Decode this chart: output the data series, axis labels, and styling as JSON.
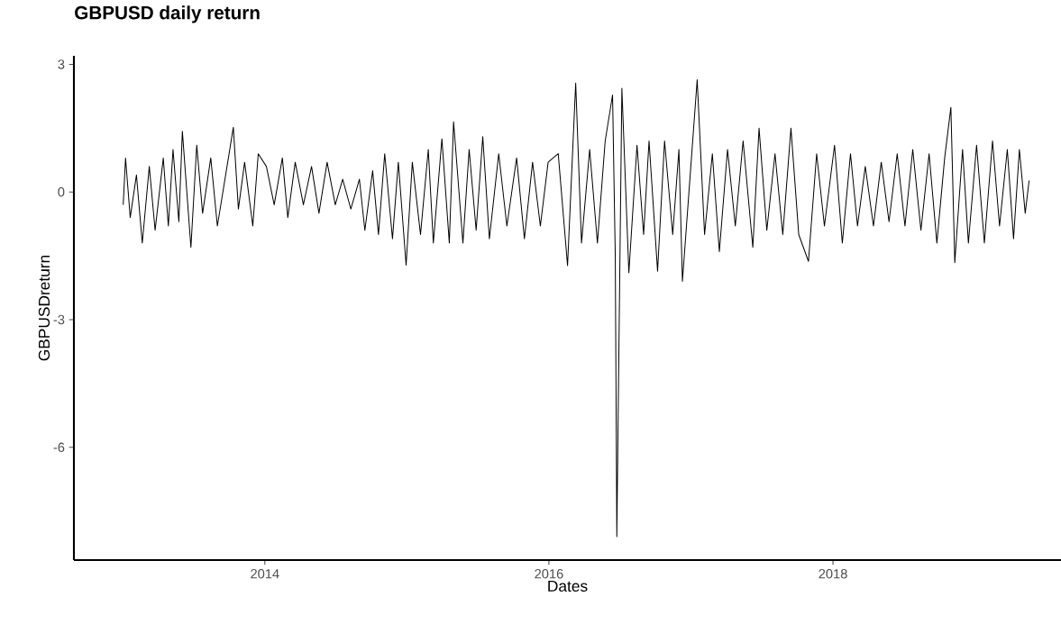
{
  "chart_data": {
    "type": "line",
    "title": "GBPUSD daily return",
    "xlabel": "Dates",
    "ylabel": "GBPUSDreturn",
    "color": "#000000",
    "xlim": [
      "2012-08-28",
      "2019-08-10"
    ],
    "ylim": [
      -8.65,
      3.2
    ],
    "xticks": [
      "2014",
      "2016",
      "2018"
    ],
    "yticks": [
      -6,
      -3,
      0,
      3
    ],
    "x": [
      "2013-01-02",
      "2013-01-08",
      "2013-01-20",
      "2013-02-05",
      "2013-02-20",
      "2013-03-10",
      "2013-03-25",
      "2013-04-15",
      "2013-04-28",
      "2013-05-10",
      "2013-05-25",
      "2013-06-03",
      "2013-06-25",
      "2013-07-10",
      "2013-07-25",
      "2013-08-15",
      "2013-09-01",
      "2013-10-12",
      "2013-10-25",
      "2013-11-10",
      "2013-12-01",
      "2013-12-15",
      "2014-01-05",
      "2014-01-25",
      "2014-02-15",
      "2014-03-01",
      "2014-03-20",
      "2014-04-10",
      "2014-05-01",
      "2014-05-20",
      "2014-06-10",
      "2014-07-01",
      "2014-07-20",
      "2014-08-10",
      "2014-09-01",
      "2014-09-15",
      "2014-10-05",
      "2014-10-20",
      "2014-11-05",
      "2014-11-25",
      "2014-12-10",
      "2014-12-30",
      "2015-01-15",
      "2015-02-05",
      "2015-02-25",
      "2015-03-10",
      "2015-04-01",
      "2015-04-20",
      "2015-05-01",
      "2015-05-25",
      "2015-06-10",
      "2015-06-28",
      "2015-07-15",
      "2015-08-01",
      "2015-08-25",
      "2015-09-15",
      "2015-10-10",
      "2015-10-30",
      "2015-11-20",
      "2015-12-10",
      "2015-12-30",
      "2016-01-25",
      "2016-02-18",
      "2016-03-10",
      "2016-03-25",
      "2016-04-15",
      "2016-05-05",
      "2016-05-25",
      "2016-06-13",
      "2016-06-20",
      "2016-06-24",
      "2016-06-27",
      "2016-07-07",
      "2016-07-25",
      "2016-08-15",
      "2016-09-01",
      "2016-09-15",
      "2016-10-07",
      "2016-10-25",
      "2016-11-15",
      "2016-12-01",
      "2016-12-10",
      "2017-01-17",
      "2017-02-05",
      "2017-02-25",
      "2017-03-15",
      "2017-04-05",
      "2017-04-25",
      "2017-05-15",
      "2017-06-09",
      "2017-06-25",
      "2017-07-15",
      "2017-08-05",
      "2017-08-25",
      "2017-09-15",
      "2017-10-05",
      "2017-10-30",
      "2017-11-20",
      "2017-12-10",
      "2018-01-05",
      "2018-01-25",
      "2018-02-15",
      "2018-03-05",
      "2018-03-25",
      "2018-04-15",
      "2018-05-05",
      "2018-05-25",
      "2018-06-15",
      "2018-07-05",
      "2018-07-25",
      "2018-08-15",
      "2018-09-05",
      "2018-09-25",
      "2018-10-15",
      "2018-10-31",
      "2018-11-10",
      "2018-11-30",
      "2018-12-15",
      "2019-01-05",
      "2019-01-25",
      "2019-02-15",
      "2019-03-05",
      "2019-03-25",
      "2019-04-10",
      "2019-04-25",
      "2019-05-10",
      "2019-05-20"
    ],
    "values": [
      -0.3,
      0.8,
      -0.6,
      0.4,
      -1.2,
      0.6,
      -0.9,
      0.8,
      -0.8,
      1.0,
      -0.7,
      1.43,
      -1.3,
      1.1,
      -0.5,
      0.8,
      -0.8,
      1.52,
      -0.4,
      0.7,
      -0.8,
      0.9,
      0.6,
      -0.3,
      0.8,
      -0.6,
      0.7,
      -0.3,
      0.6,
      -0.5,
      0.7,
      -0.3,
      0.3,
      -0.4,
      0.3,
      -0.9,
      0.5,
      -1.0,
      0.9,
      -1.1,
      0.7,
      -1.72,
      0.7,
      -1.0,
      1.0,
      -1.2,
      1.25,
      -1.2,
      1.65,
      -1.2,
      1.0,
      -0.9,
      1.3,
      -1.1,
      0.9,
      -0.8,
      0.8,
      -1.1,
      0.7,
      -0.8,
      0.7,
      0.9,
      -1.73,
      2.56,
      -1.2,
      1.0,
      -1.2,
      1.2,
      2.28,
      -1.5,
      -8.1,
      -5.6,
      2.44,
      -1.9,
      1.1,
      -1.0,
      1.2,
      -1.86,
      1.2,
      -1.0,
      1.0,
      -2.1,
      2.64,
      -1.0,
      0.9,
      -1.4,
      1.0,
      -0.8,
      1.2,
      -1.3,
      1.5,
      -0.9,
      0.9,
      -1.0,
      1.5,
      -1.0,
      -1.63,
      0.9,
      -0.8,
      1.1,
      -1.2,
      0.9,
      -0.8,
      0.6,
      -0.8,
      0.7,
      -0.7,
      0.9,
      -0.8,
      1.0,
      -0.9,
      0.9,
      -1.2,
      0.8,
      1.99,
      -1.66,
      1.0,
      -1.2,
      1.1,
      -1.2,
      1.2,
      -0.8,
      1.0,
      -1.1,
      1.0,
      -0.5,
      0.27
    ]
  }
}
